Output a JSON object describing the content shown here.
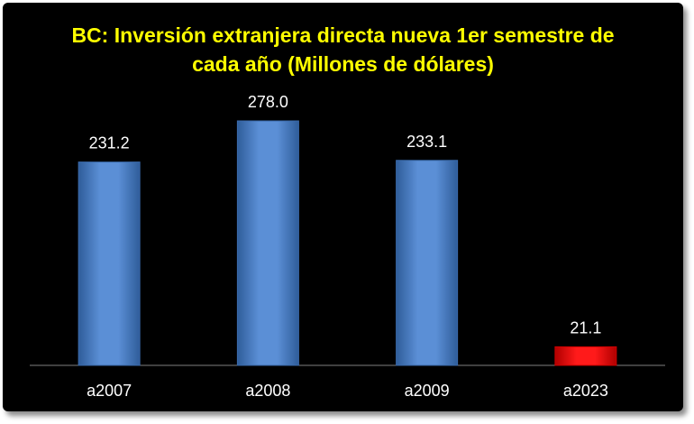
{
  "chart_data": {
    "type": "bar",
    "title_lines": [
      "BC: Inversión extranjera directa nueva 1er semestre de",
      "cada año (Millones de dólares)"
    ],
    "categories": [
      "a2007",
      "a2008",
      "a2009",
      "a2023"
    ],
    "values": [
      231.2,
      278.0,
      233.1,
      21.1
    ],
    "value_labels": [
      "231.2",
      "278.0",
      "233.1",
      "21.1"
    ],
    "xlabel": "",
    "ylabel": "",
    "ylim": [
      0,
      300
    ],
    "grid": false,
    "legend": "none",
    "colors": {
      "background": "#000000",
      "title": "#ffff00",
      "text": "#ffffff",
      "axis": "#808080",
      "bar_default": "#4f81bd",
      "bar_highlight": "#ff0000"
    },
    "highlight_category": "a2023"
  }
}
